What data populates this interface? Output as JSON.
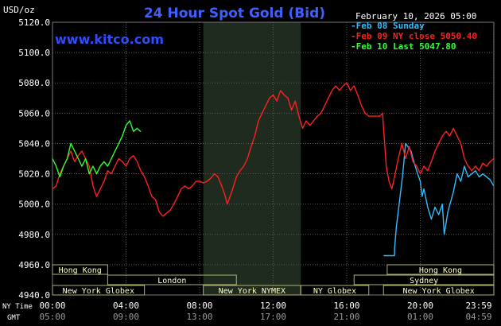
{
  "chart_data": {
    "type": "line",
    "title": "24 Hour Spot Gold (Bid)",
    "source_url": "www.kitco.com",
    "unit_label": "USD/oz",
    "date_label": "February 10, 2026 05:00",
    "ylim": [
      4940,
      5120
    ],
    "y_ticks": [
      "5120.0",
      "5100.0",
      "5080.0",
      "5060.0",
      "5040.0",
      "5020.0",
      "5000.0",
      "4980.0",
      "4960.0",
      "4940.0"
    ],
    "x_row_labels": {
      "ny": "NY Time",
      "gmt": "GMT"
    },
    "x_ticks_ny": [
      "00:00",
      "04:00",
      "08:00",
      "12:00",
      "16:00",
      "20:00",
      "23:59"
    ],
    "x_ticks_gmt": [
      "05:00",
      "09:00",
      "13:00",
      "17:00",
      "21:00",
      "01:00",
      "04:59"
    ],
    "grid": true,
    "legend_position": "top-right",
    "colors": {
      "background": "#000000",
      "grid": "#5a5a5a",
      "title": "#3f5fff",
      "url": "#2f4dff",
      "session_shade": "#1e2b1e",
      "session_fill": "#ffffcc",
      "session_border": "#b0b070",
      "axis_text": "#ffffff",
      "gmt_text": "#9a9a9a"
    },
    "series": [
      {
        "name": "Feb 08 Sunday",
        "color": "#33bbff",
        "points": [
          [
            18.0,
            4966
          ],
          [
            18.6,
            4966
          ],
          [
            18.6,
            4970
          ],
          [
            18.7,
            4985
          ],
          [
            18.9,
            5005
          ],
          [
            19.05,
            5020
          ],
          [
            19.2,
            5040
          ],
          [
            19.5,
            5035
          ],
          [
            19.6,
            5030
          ],
          [
            19.8,
            5022
          ],
          [
            20.0,
            5015
          ],
          [
            20.1,
            5005
          ],
          [
            20.2,
            5010
          ],
          [
            20.4,
            4998
          ],
          [
            20.6,
            4990
          ],
          [
            20.8,
            4998
          ],
          [
            21.0,
            4993
          ],
          [
            21.2,
            5000
          ],
          [
            21.3,
            4980
          ],
          [
            21.5,
            4995
          ],
          [
            21.8,
            5008
          ],
          [
            22.0,
            5020
          ],
          [
            22.2,
            5015
          ],
          [
            22.4,
            5025
          ],
          [
            22.6,
            5018
          ],
          [
            22.8,
            5020
          ],
          [
            23.0,
            5022
          ],
          [
            23.2,
            5018
          ],
          [
            23.4,
            5020
          ],
          [
            23.6,
            5018
          ],
          [
            23.8,
            5016
          ],
          [
            23.99,
            5012
          ]
        ]
      },
      {
        "name": "Feb 09 NY close 5050.40",
        "color": "#ff2020",
        "points": [
          [
            0,
            5010
          ],
          [
            0.2,
            5012
          ],
          [
            0.4,
            5020
          ],
          [
            0.6,
            5025
          ],
          [
            0.8,
            5030
          ],
          [
            1.0,
            5035
          ],
          [
            1.2,
            5028
          ],
          [
            1.4,
            5032
          ],
          [
            1.6,
            5035
          ],
          [
            1.8,
            5030
          ],
          [
            2.0,
            5025
          ],
          [
            2.2,
            5012
          ],
          [
            2.4,
            5005
          ],
          [
            2.6,
            5010
          ],
          [
            2.8,
            5015
          ],
          [
            3.0,
            5022
          ],
          [
            3.2,
            5020
          ],
          [
            3.4,
            5025
          ],
          [
            3.6,
            5030
          ],
          [
            3.8,
            5028
          ],
          [
            4.0,
            5025
          ],
          [
            4.2,
            5030
          ],
          [
            4.4,
            5032
          ],
          [
            4.6,
            5028
          ],
          [
            4.8,
            5022
          ],
          [
            5.0,
            5018
          ],
          [
            5.2,
            5012
          ],
          [
            5.4,
            5005
          ],
          [
            5.6,
            5003
          ],
          [
            5.8,
            4995
          ],
          [
            6.0,
            4992
          ],
          [
            6.2,
            4994
          ],
          [
            6.4,
            4996
          ],
          [
            6.6,
            5000
          ],
          [
            6.8,
            5005
          ],
          [
            7.0,
            5010
          ],
          [
            7.2,
            5012
          ],
          [
            7.4,
            5010
          ],
          [
            7.6,
            5012
          ],
          [
            7.8,
            5015
          ],
          [
            8.0,
            5015
          ],
          [
            8.2,
            5014
          ],
          [
            8.4,
            5015
          ],
          [
            8.6,
            5017
          ],
          [
            8.8,
            5020
          ],
          [
            9.0,
            5018
          ],
          [
            9.2,
            5012
          ],
          [
            9.4,
            5005
          ],
          [
            9.5,
            5000
          ],
          [
            9.6,
            5003
          ],
          [
            9.8,
            5010
          ],
          [
            10.0,
            5018
          ],
          [
            10.2,
            5022
          ],
          [
            10.4,
            5025
          ],
          [
            10.6,
            5030
          ],
          [
            10.8,
            5038
          ],
          [
            11.0,
            5045
          ],
          [
            11.2,
            5055
          ],
          [
            11.4,
            5060
          ],
          [
            11.6,
            5065
          ],
          [
            11.8,
            5070
          ],
          [
            12.0,
            5072
          ],
          [
            12.2,
            5068
          ],
          [
            12.4,
            5075
          ],
          [
            12.6,
            5072
          ],
          [
            12.8,
            5070
          ],
          [
            13.0,
            5062
          ],
          [
            13.2,
            5068
          ],
          [
            13.4,
            5058
          ],
          [
            13.6,
            5050
          ],
          [
            13.8,
            5055
          ],
          [
            14.0,
            5052
          ],
          [
            14.2,
            5055
          ],
          [
            14.4,
            5058
          ],
          [
            14.6,
            5060
          ],
          [
            14.8,
            5065
          ],
          [
            15.0,
            5070
          ],
          [
            15.2,
            5075
          ],
          [
            15.4,
            5078
          ],
          [
            15.6,
            5075
          ],
          [
            15.8,
            5078
          ],
          [
            16.0,
            5080
          ],
          [
            16.2,
            5075
          ],
          [
            16.4,
            5078
          ],
          [
            16.6,
            5072
          ],
          [
            16.8,
            5065
          ],
          [
            17.0,
            5060
          ],
          [
            17.2,
            5058
          ],
          [
            17.5,
            5058
          ],
          [
            17.8,
            5058
          ],
          [
            17.95,
            5060
          ],
          [
            18.0,
            5050
          ],
          [
            18.15,
            5025
          ],
          [
            18.3,
            5015
          ],
          [
            18.45,
            5010
          ],
          [
            18.6,
            5018
          ],
          [
            18.8,
            5030
          ],
          [
            19.0,
            5040
          ],
          [
            19.2,
            5030
          ],
          [
            19.4,
            5038
          ],
          [
            19.6,
            5028
          ],
          [
            19.8,
            5025
          ],
          [
            20.0,
            5020
          ],
          [
            20.2,
            5025
          ],
          [
            20.4,
            5022
          ],
          [
            20.6,
            5028
          ],
          [
            20.8,
            5035
          ],
          [
            21.0,
            5040
          ],
          [
            21.2,
            5045
          ],
          [
            21.4,
            5048
          ],
          [
            21.6,
            5045
          ],
          [
            21.8,
            5050
          ],
          [
            22.0,
            5045
          ],
          [
            22.2,
            5040
          ],
          [
            22.4,
            5030
          ],
          [
            22.6,
            5025
          ],
          [
            22.8,
            5022
          ],
          [
            23.0,
            5025
          ],
          [
            23.2,
            5022
          ],
          [
            23.4,
            5027
          ],
          [
            23.6,
            5025
          ],
          [
            23.8,
            5028
          ],
          [
            23.99,
            5030
          ]
        ]
      },
      {
        "name": "Feb 10 Last 5047.80",
        "color": "#33ff33",
        "points": [
          [
            0,
            5030
          ],
          [
            0.2,
            5025
          ],
          [
            0.4,
            5018
          ],
          [
            0.6,
            5025
          ],
          [
            0.8,
            5030
          ],
          [
            1.0,
            5040
          ],
          [
            1.2,
            5035
          ],
          [
            1.4,
            5030
          ],
          [
            1.6,
            5025
          ],
          [
            1.8,
            5030
          ],
          [
            2.0,
            5020
          ],
          [
            2.2,
            5025
          ],
          [
            2.4,
            5020
          ],
          [
            2.6,
            5025
          ],
          [
            2.8,
            5028
          ],
          [
            3.0,
            5025
          ],
          [
            3.2,
            5030
          ],
          [
            3.4,
            5035
          ],
          [
            3.6,
            5040
          ],
          [
            3.8,
            5045
          ],
          [
            4.0,
            5052
          ],
          [
            4.2,
            5055
          ],
          [
            4.4,
            5048
          ],
          [
            4.6,
            5050
          ],
          [
            4.8,
            5047.8
          ]
        ]
      }
    ],
    "sessions_row1": [
      {
        "label": "Hong Kong",
        "start": 0,
        "end": 3.0
      },
      {
        "label": "Hong Kong",
        "start": 18.2,
        "end": 24.0
      }
    ],
    "sessions_row2": [
      {
        "label": "London",
        "start": 3.0,
        "end": 10.0
      },
      {
        "label": "Sydney",
        "start": 16.4,
        "end": 24.0
      }
    ],
    "sessions_row3": [
      {
        "label": "New York Globex",
        "start": 0,
        "end": 5.0
      },
      {
        "label": "New York NYMEX",
        "start": 8.2,
        "end": 13.5
      },
      {
        "label": "NY Globex",
        "start": 13.5,
        "end": 17.2
      },
      {
        "label": "New York Globex",
        "start": 18.0,
        "end": 24.0
      }
    ],
    "shaded_region": {
      "start": 8.2,
      "end": 13.5
    }
  }
}
